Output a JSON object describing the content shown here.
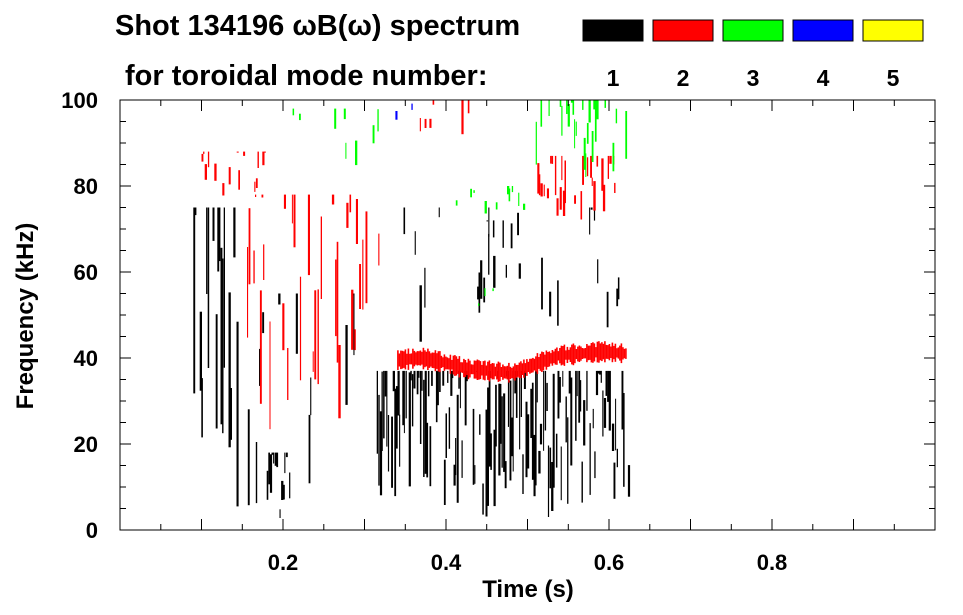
{
  "title_line1": "Shot 134196 ωB(ω) spectrum",
  "title_line2": "for toroidal mode number:",
  "chart_data": {
    "type": "heatmap",
    "xlabel": "Time (s)",
    "ylabel": "Frequency (kHz)",
    "xlim": [
      0.0,
      1.0
    ],
    "ylim": [
      0,
      100
    ],
    "x_ticks": [
      0.2,
      0.4,
      0.6,
      0.8
    ],
    "x_tick_labels": [
      "0.2",
      "0.4",
      "0.6",
      "0.8"
    ],
    "x_minor_step": 0.05,
    "y_ticks": [
      0,
      20,
      40,
      60,
      80,
      100
    ],
    "y_tick_labels": [
      "0",
      "20",
      "40",
      "60",
      "80",
      "100"
    ],
    "y_minor_step": 5,
    "grid": false,
    "legend": [
      {
        "label": "1",
        "color": "#000000"
      },
      {
        "label": "2",
        "color": "#ff0000"
      },
      {
        "label": "3",
        "color": "#00ff00"
      },
      {
        "label": "4",
        "color": "#0000ff"
      },
      {
        "label": "5",
        "color": "#ffff00"
      }
    ],
    "regions": [
      {
        "mode": 1,
        "color": "#000000",
        "t": [
          0.09,
          0.145
        ],
        "f": [
          5,
          75
        ],
        "density": 0.62
      },
      {
        "mode": 1,
        "color": "#000000",
        "t": [
          0.145,
          0.29
        ],
        "f": [
          0,
          55
        ],
        "density": 0.16
      },
      {
        "mode": 1,
        "color": "#000000",
        "t": [
          0.18,
          0.21
        ],
        "f": [
          2,
          18
        ],
        "density": 0.5
      },
      {
        "mode": 1,
        "color": "#000000",
        "t": [
          0.315,
          0.625
        ],
        "f": [
          3,
          37
        ],
        "density": 0.8
      },
      {
        "mode": 1,
        "color": "#000000",
        "t": [
          0.34,
          0.62
        ],
        "f": [
          43,
          75
        ],
        "density": 0.14
      },
      {
        "mode": 1,
        "color": "#000000",
        "t": [
          0.43,
          0.48
        ],
        "f": [
          50,
          72
        ],
        "density": 0.22
      },
      {
        "mode": 2,
        "color": "#ff0000",
        "t": [
          0.15,
          0.32
        ],
        "f": [
          20,
          78
        ],
        "density": 0.32
      },
      {
        "mode": 2,
        "color": "#ff0000",
        "t": [
          0.1,
          0.18
        ],
        "f": [
          77,
          88
        ],
        "density": 0.3
      },
      {
        "mode": 2,
        "color": "#ff0000",
        "t": [
          0.36,
          0.43
        ],
        "f": [
          84,
          100
        ],
        "density": 0.3
      },
      {
        "mode": 2,
        "color": "#ff0000",
        "t": [
          0.51,
          0.61
        ],
        "f": [
          72,
          87
        ],
        "density": 0.55
      },
      {
        "mode": 3,
        "color": "#00ff00",
        "t": [
          0.2,
          0.32
        ],
        "f": [
          82,
          98
        ],
        "density": 0.12
      },
      {
        "mode": 3,
        "color": "#00ff00",
        "t": [
          0.51,
          0.62
        ],
        "f": [
          82,
          100
        ],
        "density": 0.45
      },
      {
        "mode": 3,
        "color": "#00ff00",
        "t": [
          0.41,
          0.5
        ],
        "f": [
          73,
          80
        ],
        "density": 0.2
      },
      {
        "mode": 3,
        "color": "#00ff00",
        "t": [
          0.4,
          0.5
        ],
        "f": [
          52,
          58
        ],
        "density": 0.08
      },
      {
        "mode": 4,
        "color": "#0000ff",
        "t": [
          0.33,
          0.38
        ],
        "f": [
          92,
          100
        ],
        "density": 0.06
      }
    ],
    "bands": [
      {
        "mode": 2,
        "color": "#ff0000",
        "t": [
          0.34,
          0.62
        ],
        "f": [
          39.5,
          40,
          39,
          37.5,
          37,
          36.5,
          38.5,
          40.5,
          41,
          41.5,
          41
        ],
        "halfwidth": 1.8
      }
    ]
  }
}
